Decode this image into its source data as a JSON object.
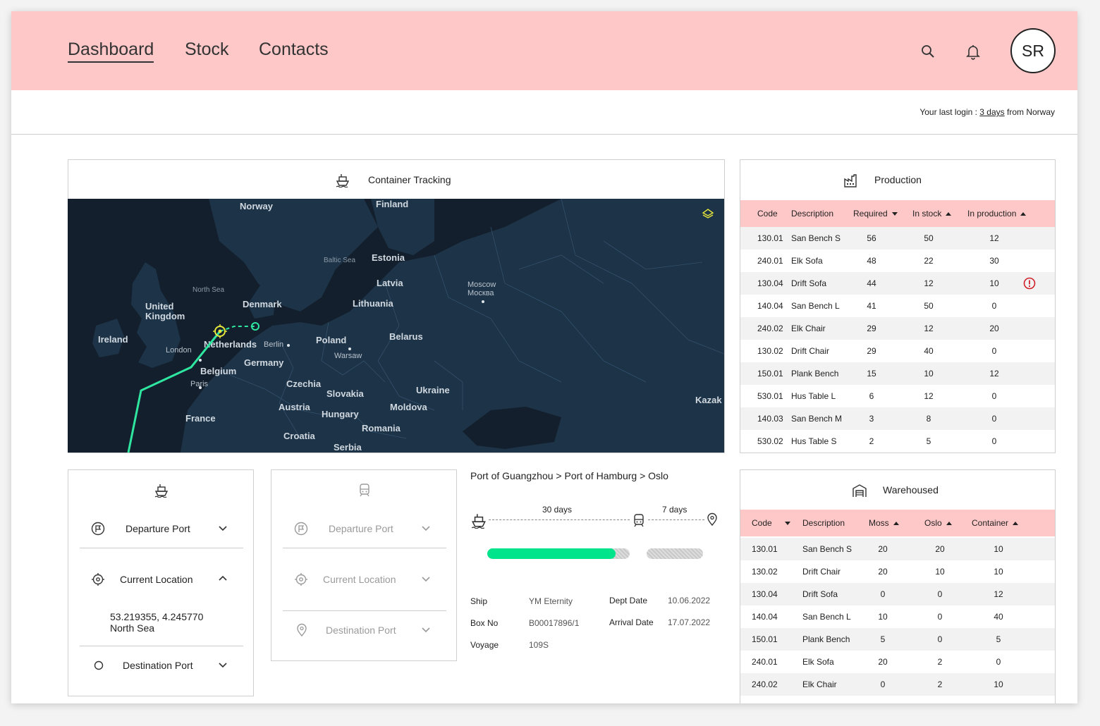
{
  "nav": {
    "items": [
      {
        "label": "Dashboard",
        "active": true
      },
      {
        "label": "Stock"
      },
      {
        "label": "Contacts"
      }
    ],
    "avatar_initials": "SR"
  },
  "login": {
    "prefix": "Your last login : ",
    "link": "3 days",
    "suffix": " from Norway"
  },
  "tracking": {
    "title": "Container Tracking",
    "map_labels": {
      "norway": "Norway",
      "finland": "Finland",
      "estonia": "Estonia",
      "baltic": "Baltic Sea",
      "latvia": "Latvia",
      "lithuania": "Lithuania",
      "denmark": "Denmark",
      "northsea": "North Sea",
      "uk": "United\nKingdom",
      "ireland": "Ireland",
      "london": "London",
      "netherlands": "Netherlands",
      "berlin": "Berlin",
      "poland": "Poland",
      "warsaw": "Warsaw",
      "belarus": "Belarus",
      "moscow": "Moscow\nМосква",
      "belgium": "Belgium",
      "germany": "Germany",
      "paris": "Paris",
      "czechia": "Czechia",
      "slovakia": "Slovakia",
      "ukraine": "Ukraine",
      "austria": "Austria",
      "hungary": "Hungary",
      "moldova": "Moldova",
      "france": "France",
      "romania": "Romania",
      "croatia": "Croatia",
      "serbia": "Serbia",
      "kazak": "Kazak"
    }
  },
  "ship_panel": {
    "departure": "Departure Port",
    "current": "Current Location",
    "coords": "53.219355, 4.245770",
    "sea": "North Sea",
    "destination": "Destination Port"
  },
  "train_panel": {
    "departure": "Departure Port",
    "current": "Current Location",
    "destination": "Destination Port"
  },
  "route": {
    "title": "Port of Guangzhou > Port of Hamburg > Oslo",
    "leg1_days": "30 days",
    "leg2_days": "7 days",
    "leg1_progress": 0.9,
    "leg2_progress": 0.0,
    "ship_label": "Ship",
    "ship": "YM Eternity",
    "box_label": "Box No",
    "box": "B00017896/1",
    "voyage_label": "Voyage",
    "voyage": "109S",
    "dept_label": "Dept Date",
    "dept": "10.06.2022",
    "arr_label": "Arrival Date",
    "arr": "17.07.2022"
  },
  "production": {
    "title": "Production",
    "headers": [
      "Code",
      "Description",
      "Required",
      "In stock",
      "In production"
    ],
    "rows": [
      [
        "130.01",
        "San Bench S",
        "56",
        "50",
        "12"
      ],
      [
        "240.01",
        "Elk Sofa",
        "48",
        "22",
        "30"
      ],
      [
        "130.04",
        "Drift Sofa",
        "44",
        "12",
        "10"
      ],
      [
        "140.04",
        "San Bench L",
        "41",
        "50",
        "0"
      ],
      [
        "240.02",
        "Elk Chair",
        "29",
        "12",
        "20"
      ],
      [
        "130.02",
        "Drift Chair",
        "29",
        "40",
        "0"
      ],
      [
        "150.01",
        "Plank Bench",
        "15",
        "10",
        "12"
      ],
      [
        "530.01",
        "Hus Table L",
        "6",
        "12",
        "0"
      ],
      [
        "140.03",
        "San Bench M",
        "3",
        "8",
        "0"
      ],
      [
        "530.02",
        "Hus Table S",
        "2",
        "5",
        "0"
      ]
    ],
    "alert_row": 2
  },
  "warehoused": {
    "title": "Warehoused",
    "headers": [
      "Code",
      "Description",
      "Moss",
      "Oslo",
      "Container"
    ],
    "rows": [
      [
        "130.01",
        "San Bench S",
        "20",
        "20",
        "10"
      ],
      [
        "130.02",
        "Drift Chair",
        "20",
        "10",
        "10"
      ],
      [
        "130.04",
        "Drift Sofa",
        "0",
        "0",
        "12"
      ],
      [
        "140.04",
        "San Bench L",
        "10",
        "0",
        "40"
      ],
      [
        "150.01",
        "Plank Bench",
        "5",
        "0",
        "5"
      ],
      [
        "240.01",
        "Elk Sofa",
        "20",
        "2",
        "0"
      ],
      [
        "240.02",
        "Elk Chair",
        "0",
        "2",
        "10"
      ]
    ]
  },
  "colors": {
    "accent": "#ffc8c8",
    "progress": "#00e58c",
    "map_bg": "#1a2c3e",
    "route": "#2ee6a0",
    "marker": "#e6e63c"
  }
}
